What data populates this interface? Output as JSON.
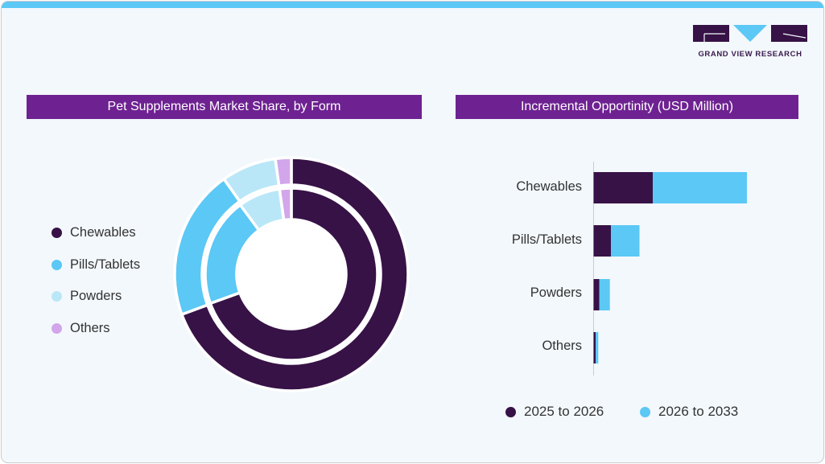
{
  "logo": {
    "text": "GRAND VIEW RESEARCH"
  },
  "colors": {
    "chewables": "#371246",
    "pills_tablets": "#5bc8f5",
    "powders": "#b9e7f8",
    "others": "#d2a6ea",
    "header": "#6e2291",
    "accent": "#5bc8f5"
  },
  "chart_data": [
    {
      "type": "pie",
      "title": "Pet Supplements Market Share, by Form",
      "subtype": "nested-donut",
      "legend_position": "left",
      "categories": [
        "Chewables",
        "Pills/Tablets",
        "Powders",
        "Others"
      ],
      "series": [
        {
          "ring": "outer",
          "values": [
            69.4,
            20.8,
            7.6,
            2.2
          ]
        },
        {
          "ring": "inner",
          "values": [
            69.5,
            20.4,
            7.9,
            2.2
          ]
        }
      ]
    },
    {
      "type": "bar",
      "orientation": "horizontal",
      "stacked": true,
      "title": "Incremental Opportinity (USD Million)",
      "categories": [
        "Chewables",
        "Pills/Tablets",
        "Powders",
        "Others"
      ],
      "series": [
        {
          "name": "2025 to 2026",
          "values": [
            73.5,
            21.5,
            7.2,
            2.5
          ]
        },
        {
          "name": "2026 to 2033",
          "values": [
            117,
            35.5,
            13,
            3.3
          ]
        }
      ],
      "legend_position": "bottom",
      "grid": false
    }
  ]
}
